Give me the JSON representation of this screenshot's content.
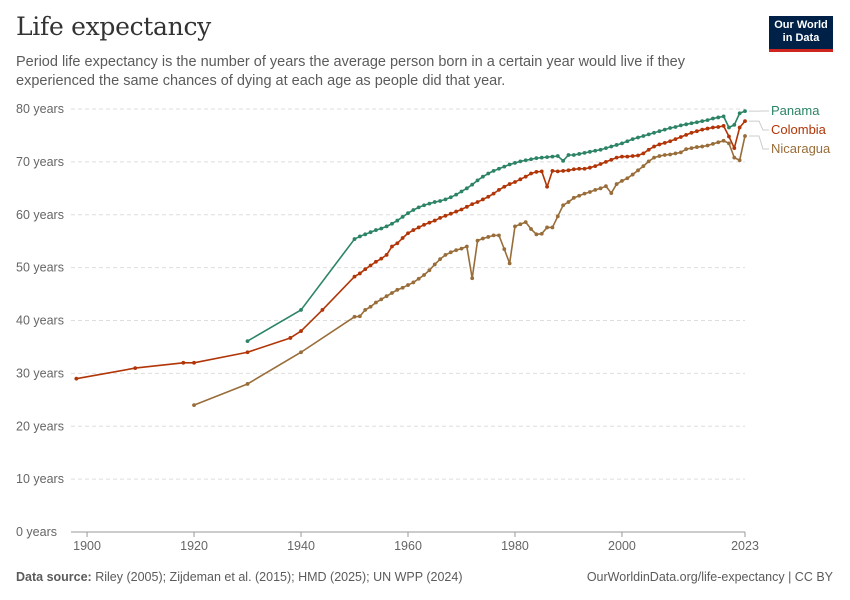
{
  "title": "Life expectancy",
  "subtitle": "Period life expectancy is the number of years the average person born in a certain year would live if they experienced the same chances of dying at each age as people did that year.",
  "logo": {
    "line1": "Our World",
    "line2": "in Data"
  },
  "footer": {
    "source_label": "Data source:",
    "source_text": "Riley (2005); Zijdeman et al. (2015); HMD (2025); UN WPP (2024)",
    "url_text": "OurWorldinData.org/life-expectancy | CC BY"
  },
  "chart_data": {
    "type": "line",
    "title": "Life expectancy",
    "xlim": [
      1897,
      2023
    ],
    "ylim": [
      0,
      80
    ],
    "x_ticks": [
      {
        "value": 1900,
        "label": "1900"
      },
      {
        "value": 1920,
        "label": "1920"
      },
      {
        "value": 1940,
        "label": "1940"
      },
      {
        "value": 1960,
        "label": "1960"
      },
      {
        "value": 1980,
        "label": "1980"
      },
      {
        "value": 2000,
        "label": "2000"
      },
      {
        "value": 2023,
        "label": "2023"
      }
    ],
    "y_ticks": [
      {
        "value": 0,
        "label": "0 years"
      },
      {
        "value": 10,
        "label": "10 years"
      },
      {
        "value": 20,
        "label": "20 years"
      },
      {
        "value": 30,
        "label": "30 years"
      },
      {
        "value": 40,
        "label": "40 years"
      },
      {
        "value": 50,
        "label": "50 years"
      },
      {
        "value": 60,
        "label": "60 years"
      },
      {
        "value": 70,
        "label": "70 years"
      },
      {
        "value": 80,
        "label": "80 years"
      }
    ],
    "grid": "horizontal dashed",
    "legend_placement": "right, labels at line ends",
    "series": [
      {
        "name": "Panama",
        "color": "#2c8465",
        "points": [
          [
            1930,
            36.1
          ],
          [
            1940,
            42.0
          ],
          [
            1950,
            55.4
          ],
          [
            1951,
            55.9
          ],
          [
            1952,
            56.3
          ],
          [
            1953,
            56.7
          ],
          [
            1954,
            57.1
          ],
          [
            1955,
            57.4
          ],
          [
            1956,
            57.8
          ],
          [
            1957,
            58.3
          ],
          [
            1958,
            58.9
          ],
          [
            1959,
            59.6
          ],
          [
            1960,
            60.3
          ],
          [
            1961,
            60.9
          ],
          [
            1962,
            61.4
          ],
          [
            1963,
            61.8
          ],
          [
            1964,
            62.1
          ],
          [
            1965,
            62.4
          ],
          [
            1966,
            62.6
          ],
          [
            1967,
            62.9
          ],
          [
            1968,
            63.3
          ],
          [
            1969,
            63.8
          ],
          [
            1970,
            64.4
          ],
          [
            1971,
            65.0
          ],
          [
            1972,
            65.7
          ],
          [
            1973,
            66.5
          ],
          [
            1974,
            67.2
          ],
          [
            1975,
            67.8
          ],
          [
            1976,
            68.3
          ],
          [
            1977,
            68.7
          ],
          [
            1978,
            69.1
          ],
          [
            1979,
            69.5
          ],
          [
            1980,
            69.8
          ],
          [
            1981,
            70.1
          ],
          [
            1982,
            70.3
          ],
          [
            1983,
            70.5
          ],
          [
            1984,
            70.7
          ],
          [
            1985,
            70.8
          ],
          [
            1986,
            70.9
          ],
          [
            1987,
            71.0
          ],
          [
            1988,
            71.1
          ],
          [
            1989,
            70.2
          ],
          [
            1990,
            71.3
          ],
          [
            1991,
            71.3
          ],
          [
            1992,
            71.5
          ],
          [
            1993,
            71.7
          ],
          [
            1994,
            71.9
          ],
          [
            1995,
            72.1
          ],
          [
            1996,
            72.3
          ],
          [
            1997,
            72.6
          ],
          [
            1998,
            72.9
          ],
          [
            1999,
            73.2
          ],
          [
            2000,
            73.5
          ],
          [
            2001,
            73.9
          ],
          [
            2002,
            74.3
          ],
          [
            2003,
            74.6
          ],
          [
            2004,
            74.9
          ],
          [
            2005,
            75.2
          ],
          [
            2006,
            75.5
          ],
          [
            2007,
            75.8
          ],
          [
            2008,
            76.1
          ],
          [
            2009,
            76.4
          ],
          [
            2010,
            76.6
          ],
          [
            2011,
            76.9
          ],
          [
            2012,
            77.1
          ],
          [
            2013,
            77.3
          ],
          [
            2014,
            77.5
          ],
          [
            2015,
            77.7
          ],
          [
            2016,
            77.9
          ],
          [
            2017,
            78.2
          ],
          [
            2018,
            78.4
          ],
          [
            2019,
            78.6
          ],
          [
            2020,
            76.5
          ],
          [
            2021,
            77.0
          ],
          [
            2022,
            79.2
          ],
          [
            2023,
            79.6
          ]
        ]
      },
      {
        "name": "Colombia",
        "color": "#b13507",
        "points": [
          [
            1898,
            29.0
          ],
          [
            1909,
            31.0
          ],
          [
            1918,
            32.0
          ],
          [
            1920,
            32.0
          ],
          [
            1930,
            34.0
          ],
          [
            1938,
            36.7
          ],
          [
            1940,
            38.0
          ],
          [
            1944,
            42.0
          ],
          [
            1950,
            48.3
          ],
          [
            1951,
            48.9
          ],
          [
            1952,
            49.7
          ],
          [
            1953,
            50.4
          ],
          [
            1954,
            51.1
          ],
          [
            1955,
            51.7
          ],
          [
            1956,
            52.4
          ],
          [
            1957,
            54.0
          ],
          [
            1958,
            54.6
          ],
          [
            1959,
            55.6
          ],
          [
            1960,
            56.5
          ],
          [
            1961,
            57.1
          ],
          [
            1962,
            57.6
          ],
          [
            1963,
            58.1
          ],
          [
            1964,
            58.5
          ],
          [
            1965,
            58.9
          ],
          [
            1966,
            59.4
          ],
          [
            1967,
            59.8
          ],
          [
            1968,
            60.2
          ],
          [
            1969,
            60.6
          ],
          [
            1970,
            61.0
          ],
          [
            1971,
            61.5
          ],
          [
            1972,
            62.0
          ],
          [
            1973,
            62.4
          ],
          [
            1974,
            62.9
          ],
          [
            1975,
            63.4
          ],
          [
            1976,
            64.0
          ],
          [
            1977,
            64.7
          ],
          [
            1978,
            65.3
          ],
          [
            1979,
            65.8
          ],
          [
            1980,
            66.2
          ],
          [
            1981,
            66.7
          ],
          [
            1982,
            67.2
          ],
          [
            1983,
            67.8
          ],
          [
            1984,
            68.1
          ],
          [
            1985,
            68.2
          ],
          [
            1986,
            65.3
          ],
          [
            1987,
            68.3
          ],
          [
            1988,
            68.2
          ],
          [
            1989,
            68.3
          ],
          [
            1990,
            68.4
          ],
          [
            1991,
            68.6
          ],
          [
            1992,
            68.7
          ],
          [
            1993,
            68.7
          ],
          [
            1994,
            68.9
          ],
          [
            1995,
            69.2
          ],
          [
            1996,
            69.6
          ],
          [
            1997,
            70.0
          ],
          [
            1998,
            70.4
          ],
          [
            1999,
            70.8
          ],
          [
            2000,
            71.0
          ],
          [
            2001,
            71.0
          ],
          [
            2002,
            71.1
          ],
          [
            2003,
            71.2
          ],
          [
            2004,
            71.6
          ],
          [
            2005,
            72.3
          ],
          [
            2006,
            72.9
          ],
          [
            2007,
            73.3
          ],
          [
            2008,
            73.6
          ],
          [
            2009,
            73.9
          ],
          [
            2010,
            74.3
          ],
          [
            2011,
            74.7
          ],
          [
            2012,
            75.1
          ],
          [
            2013,
            75.5
          ],
          [
            2014,
            75.8
          ],
          [
            2015,
            76.1
          ],
          [
            2016,
            76.3
          ],
          [
            2017,
            76.5
          ],
          [
            2018,
            76.6
          ],
          [
            2019,
            76.8
          ],
          [
            2020,
            74.8
          ],
          [
            2021,
            72.6
          ],
          [
            2022,
            76.5
          ],
          [
            2023,
            77.7
          ]
        ]
      },
      {
        "name": "Nicaragua",
        "color": "#986d39",
        "points": [
          [
            1920,
            24.0
          ],
          [
            1930,
            28.0
          ],
          [
            1940,
            34.0
          ],
          [
            1950,
            40.7
          ],
          [
            1951,
            40.8
          ],
          [
            1952,
            42.0
          ],
          [
            1953,
            42.6
          ],
          [
            1954,
            43.4
          ],
          [
            1955,
            44.0
          ],
          [
            1956,
            44.6
          ],
          [
            1957,
            45.2
          ],
          [
            1958,
            45.8
          ],
          [
            1959,
            46.2
          ],
          [
            1960,
            46.7
          ],
          [
            1961,
            47.2
          ],
          [
            1962,
            47.9
          ],
          [
            1963,
            48.6
          ],
          [
            1964,
            49.5
          ],
          [
            1965,
            50.6
          ],
          [
            1966,
            51.6
          ],
          [
            1967,
            52.4
          ],
          [
            1968,
            52.9
          ],
          [
            1969,
            53.3
          ],
          [
            1970,
            53.6
          ],
          [
            1971,
            54.0
          ],
          [
            1972,
            48.0
          ],
          [
            1973,
            55.1
          ],
          [
            1974,
            55.5
          ],
          [
            1975,
            55.8
          ],
          [
            1976,
            56.1
          ],
          [
            1977,
            56.1
          ],
          [
            1978,
            53.5
          ],
          [
            1979,
            50.8
          ],
          [
            1980,
            57.8
          ],
          [
            1981,
            58.2
          ],
          [
            1982,
            58.6
          ],
          [
            1983,
            57.3
          ],
          [
            1984,
            56.3
          ],
          [
            1985,
            56.4
          ],
          [
            1986,
            57.6
          ],
          [
            1987,
            57.6
          ],
          [
            1988,
            59.7
          ],
          [
            1989,
            61.8
          ],
          [
            1990,
            62.4
          ],
          [
            1991,
            63.2
          ],
          [
            1992,
            63.6
          ],
          [
            1993,
            64.0
          ],
          [
            1994,
            64.3
          ],
          [
            1995,
            64.7
          ],
          [
            1996,
            65.0
          ],
          [
            1997,
            65.4
          ],
          [
            1998,
            64.1
          ],
          [
            1999,
            65.8
          ],
          [
            2000,
            66.4
          ],
          [
            2001,
            66.9
          ],
          [
            2002,
            67.6
          ],
          [
            2003,
            68.4
          ],
          [
            2004,
            69.2
          ],
          [
            2005,
            70.1
          ],
          [
            2006,
            70.8
          ],
          [
            2007,
            71.1
          ],
          [
            2008,
            71.3
          ],
          [
            2009,
            71.4
          ],
          [
            2010,
            71.6
          ],
          [
            2011,
            71.8
          ],
          [
            2012,
            72.4
          ],
          [
            2013,
            72.6
          ],
          [
            2014,
            72.8
          ],
          [
            2015,
            72.9
          ],
          [
            2016,
            73.1
          ],
          [
            2017,
            73.4
          ],
          [
            2018,
            73.7
          ],
          [
            2019,
            74.0
          ],
          [
            2020,
            73.5
          ],
          [
            2021,
            70.8
          ],
          [
            2022,
            70.3
          ],
          [
            2023,
            74.9
          ]
        ]
      }
    ]
  }
}
